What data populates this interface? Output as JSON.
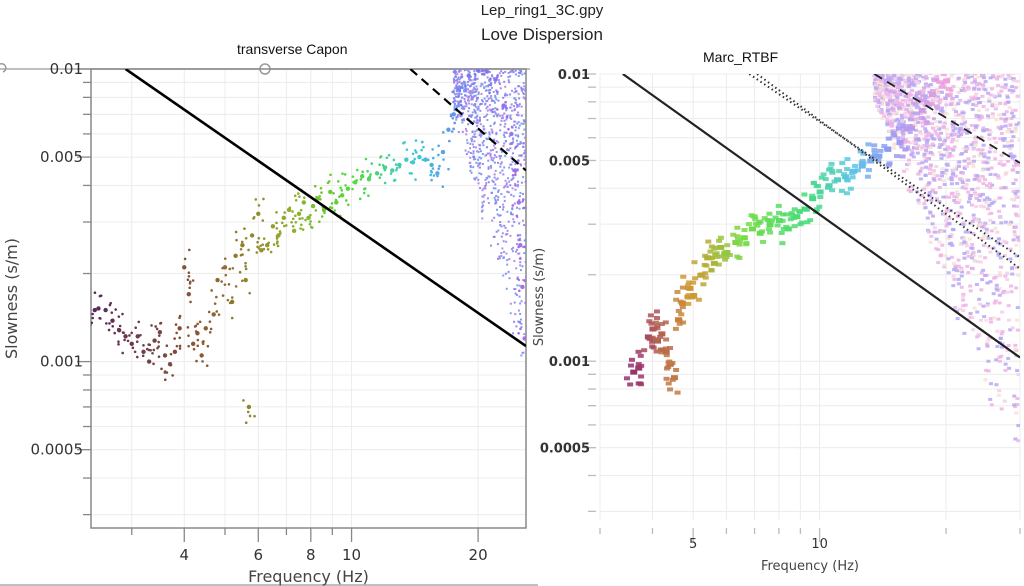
{
  "file_title": "Lep_ring1_3C.gpy",
  "main_title": "Love Dispersion",
  "chart_data": [
    {
      "type": "scatter",
      "title": "transverse Capon",
      "xlabel": "Frequency (Hz)",
      "ylabel": "Slowness (s/m)",
      "xscale": "log",
      "yscale": "log",
      "xlim": [
        2.4,
        26
      ],
      "ylim": [
        0.00027,
        0.01
      ],
      "xticks_major": [
        4,
        6,
        8,
        10,
        20
      ],
      "xtick_labels": [
        "4",
        "6",
        "8",
        "10",
        "20"
      ],
      "yticks_major": [
        0.01,
        0.005,
        0.001,
        0.0005
      ],
      "ytick_labels": [
        "0.01",
        "0.005",
        "0.001",
        "0.0005"
      ],
      "grid": true,
      "colormap": "dark-purple to brown to green to cyan to violet (increasing frequency)",
      "lines": [
        {
          "name": "solid-limit",
          "style": "solid",
          "color": "#000000",
          "points": [
            [
              2.9,
              0.01
            ],
            [
              26,
              0.00113
            ]
          ]
        },
        {
          "name": "dashed-limit",
          "style": "dashed",
          "color": "#000000",
          "points": [
            [
              13.8,
              0.01
            ],
            [
              26,
              0.0045
            ]
          ]
        }
      ],
      "series": [
        {
          "name": "dispersion-picks",
          "points": [
            [
              2.45,
              0.0015
            ],
            [
              2.5,
              0.00152
            ],
            [
              2.6,
              0.0015
            ],
            [
              2.7,
              0.00138
            ],
            [
              2.8,
              0.00128
            ],
            [
              2.9,
              0.00122
            ],
            [
              3.0,
              0.00115
            ],
            [
              3.1,
              0.00122
            ],
            [
              3.2,
              0.00108
            ],
            [
              3.3,
              0.001
            ],
            [
              3.4,
              0.00118
            ],
            [
              3.5,
              0.00126
            ],
            [
              3.6,
              0.00105
            ],
            [
              3.7,
              0.00098
            ],
            [
              3.8,
              0.00108
            ],
            [
              3.9,
              0.0013
            ],
            [
              4.0,
              0.0021
            ],
            [
              4.1,
              0.0017
            ],
            [
              4.2,
              0.00115
            ],
            [
              4.3,
              0.00125
            ],
            [
              4.4,
              0.00105
            ],
            [
              4.5,
              0.0013
            ],
            [
              4.7,
              0.00145
            ],
            [
              4.8,
              0.0019
            ],
            [
              5.0,
              0.0021
            ],
            [
              5.2,
              0.0016
            ],
            [
              5.3,
              0.0023
            ],
            [
              5.5,
              0.0025
            ],
            [
              5.6,
              0.0019
            ],
            [
              5.7,
              0.0007
            ],
            [
              5.8,
              0.0027
            ],
            [
              6.0,
              0.0032
            ],
            [
              6.1,
              0.0024
            ],
            [
              6.3,
              0.0025
            ],
            [
              6.5,
              0.0029
            ],
            [
              6.7,
              0.0027
            ],
            [
              6.9,
              0.0031
            ],
            [
              7.1,
              0.0033
            ],
            [
              7.3,
              0.0028
            ],
            [
              7.5,
              0.0032
            ],
            [
              7.7,
              0.0035
            ],
            [
              7.9,
              0.0031
            ],
            [
              8.1,
              0.0034
            ],
            [
              8.3,
              0.0036
            ],
            [
              8.6,
              0.0033
            ],
            [
              8.9,
              0.0038
            ],
            [
              9.2,
              0.0035
            ],
            [
              9.5,
              0.0037
            ],
            [
              9.8,
              0.0039
            ],
            [
              10.2,
              0.0041
            ],
            [
              10.6,
              0.0043
            ],
            [
              11.0,
              0.0042
            ],
            [
              11.5,
              0.0044
            ],
            [
              12.0,
              0.0046
            ],
            [
              12.5,
              0.0045
            ],
            [
              13.0,
              0.0047
            ],
            [
              13.5,
              0.0049
            ],
            [
              14.0,
              0.0048
            ],
            [
              14.5,
              0.005
            ],
            [
              15.0,
              0.0049
            ],
            [
              15.5,
              0.0047
            ],
            [
              16.0,
              0.0044
            ],
            [
              16.5,
              0.0052
            ],
            [
              17.0,
              0.0062
            ],
            [
              17.5,
              0.007
            ],
            [
              18.0,
              0.0085
            ],
            [
              19.0,
              0.0095
            ],
            [
              20.0,
              0.0099
            ],
            [
              21.0,
              0.0098
            ],
            [
              22.0,
              0.0092
            ],
            [
              23.0,
              0.0075
            ],
            [
              24.0,
              0.006
            ],
            [
              24.5,
              0.0045
            ],
            [
              25.0,
              0.0035
            ],
            [
              25.2,
              0.0025
            ],
            [
              25.5,
              0.0018
            ],
            [
              25.8,
              0.0012
            ]
          ]
        }
      ]
    },
    {
      "type": "heatmap",
      "title": "Marc_RTBF",
      "xlabel": "Frequency (Hz)",
      "ylabel": "Slowness (s/m)",
      "xscale": "log",
      "yscale": "log",
      "xlim": [
        3,
        30
      ],
      "ylim": [
        0.00028,
        0.01
      ],
      "xticks_major": [
        5,
        10
      ],
      "xtick_labels": [
        "5",
        "10"
      ],
      "yticks_major": [
        0.01,
        0.005,
        0.001,
        0.0005
      ],
      "ytick_labels": [
        "0.01",
        "0.005",
        "0.001",
        "0.0005"
      ],
      "grid": true,
      "colormap": "purple to orange to green to cyan to violet to pink (increasing frequency)",
      "lines": [
        {
          "name": "solid-limit",
          "style": "solid",
          "color": "#222222",
          "points": [
            [
              3.4,
              0.01
            ],
            [
              30,
              0.00103
            ]
          ]
        },
        {
          "name": "dotted-limit-1",
          "style": "dotted",
          "color": "#333333",
          "points": [
            [
              6.8,
              0.01
            ],
            [
              30,
              0.0023
            ]
          ]
        },
        {
          "name": "dotted-limit-2",
          "style": "dotted",
          "color": "#333333",
          "points": [
            [
              7.1,
              0.01
            ],
            [
              30,
              0.0021
            ]
          ]
        },
        {
          "name": "dashed-limit",
          "style": "dashed",
          "color": "#222222",
          "points": [
            [
              13.5,
              0.01
            ],
            [
              30,
              0.0049
            ]
          ]
        }
      ],
      "series": [
        {
          "name": "dispersion-cells",
          "points": [
            [
              3.6,
              0.00092
            ],
            [
              3.7,
              0.00095
            ],
            [
              3.9,
              0.00122
            ],
            [
              4.0,
              0.0013
            ],
            [
              4.1,
              0.00118
            ],
            [
              4.2,
              0.00125
            ],
            [
              4.3,
              0.00108
            ],
            [
              4.4,
              0.00098
            ],
            [
              4.5,
              0.00088
            ],
            [
              4.6,
              0.0014
            ],
            [
              4.7,
              0.0016
            ],
            [
              4.9,
              0.0018
            ],
            [
              5.0,
              0.0017
            ],
            [
              5.2,
              0.002
            ],
            [
              5.4,
              0.0023
            ],
            [
              5.6,
              0.0022
            ],
            [
              5.8,
              0.0025
            ],
            [
              6.0,
              0.0024
            ],
            [
              6.3,
              0.0026
            ],
            [
              6.6,
              0.0027
            ],
            [
              6.9,
              0.0029
            ],
            [
              7.2,
              0.0028
            ],
            [
              7.6,
              0.003
            ],
            [
              8.0,
              0.0031
            ],
            [
              8.4,
              0.0029
            ],
            [
              8.8,
              0.0032
            ],
            [
              9.2,
              0.0034
            ],
            [
              9.6,
              0.0037
            ],
            [
              10.0,
              0.0039
            ],
            [
              10.5,
              0.0041
            ],
            [
              11.0,
              0.0043
            ],
            [
              11.5,
              0.0044
            ],
            [
              12.0,
              0.0046
            ],
            [
              12.6,
              0.0048
            ],
            [
              13.2,
              0.005
            ],
            [
              13.8,
              0.0052
            ],
            [
              14.5,
              0.0055
            ],
            [
              15.5,
              0.0058
            ],
            [
              16.5,
              0.0065
            ],
            [
              17.5,
              0.0075
            ],
            [
              18.5,
              0.0085
            ],
            [
              20.0,
              0.0095
            ]
          ]
        }
      ]
    }
  ]
}
